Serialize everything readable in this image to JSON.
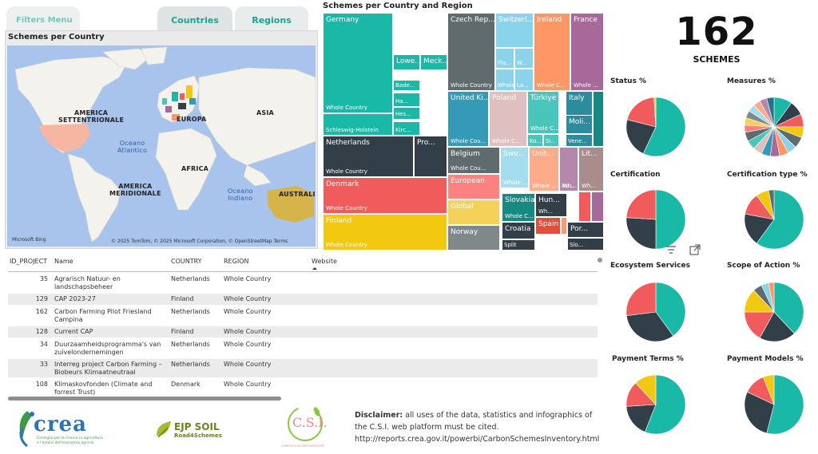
{
  "tabs": {
    "filters": "Filters Menu",
    "countries": "Countries",
    "regions": "Regions"
  },
  "map": {
    "title": "Schemes per Country",
    "labels": {
      "north_america": [
        "AMERICA",
        "SETTENTRIONALE"
      ],
      "south_america": [
        "AMERICA",
        "MERIDIONALE"
      ],
      "europe": "EUROPA",
      "asia": "ASIA",
      "africa": "AFRICA",
      "australia": "AUSTRALIA",
      "atlantic": [
        "Oceano",
        "Atlantico"
      ],
      "indian": [
        "Oceano",
        "Indiano"
      ]
    },
    "bing": "Microsoft Bing",
    "credits": "© 2025 TomTom, © 2025 Microsoft Corporation, © OpenStreetMap  Terms"
  },
  "treemap": {
    "title": "Schemes per Country and Region",
    "tiles": [
      {
        "name": "Germany",
        "sub": "Whole Country",
        "color": "#1ab8a6"
      },
      {
        "name": "Lowe...",
        "sub": "",
        "color": "#1ab8a6"
      },
      {
        "name": "Meck...",
        "sub": "",
        "color": "#1ab8a6"
      },
      {
        "name": "Bade...",
        "sub": "",
        "color": "#1ab8a6"
      },
      {
        "name": "Ha...",
        "sub": "",
        "color": "#1ab8a6"
      },
      {
        "name": "Hes...",
        "sub": "",
        "color": "#1ab8a6"
      },
      {
        "name": "Kirc...",
        "sub": "",
        "color": "#1ab8a6"
      },
      {
        "name": "",
        "sub": "Schleswig-Holstein",
        "color": "#1ab8a6"
      },
      {
        "name": "Netherlands",
        "sub": "Whole Country",
        "color": "#333f48"
      },
      {
        "name": "Pro...",
        "sub": "",
        "color": "#333f48"
      },
      {
        "name": "Denmark",
        "sub": "Whole Country",
        "color": "#f25b5b"
      },
      {
        "name": "Finland",
        "sub": "Whole Country",
        "color": "#f2c811"
      },
      {
        "name": "Czech Rep...",
        "sub": "Whole Country",
        "color": "#5f6b6d"
      },
      {
        "name": "Switzerl...",
        "sub": "",
        "color": "#8ad4eb"
      },
      {
        "name": "Fla...",
        "sub": "",
        "color": "#8ad4eb"
      },
      {
        "name": "W...",
        "sub": "",
        "color": "#8ad4eb"
      },
      {
        "name": "Whole C...",
        "sub": "",
        "color": "#8ad4eb"
      },
      {
        "name": "La...",
        "sub": "",
        "color": "#8ad4eb"
      },
      {
        "name": "Ireland",
        "sub": "Whole C...",
        "color": "#fe9666"
      },
      {
        "name": "France",
        "sub": "Whole ...",
        "color": "#a66999"
      },
      {
        "name": "United Ki...",
        "sub": "Whole Cou...",
        "color": "#3599b8"
      },
      {
        "name": "Poland",
        "sub": "Whole C...",
        "color": "#dfbfbf"
      },
      {
        "name": "Türkiye",
        "sub": "Whole C...",
        "color": "#4ac5bb"
      },
      {
        "name": "Ko...",
        "sub": "",
        "color": "#4ac5bb"
      },
      {
        "name": "Si...",
        "sub": "",
        "color": "#4ac5bb"
      },
      {
        "name": "Italy",
        "sub": "",
        "color": "#2b8c9e"
      },
      {
        "name": "Moli...",
        "sub": "",
        "color": "#2b8c9e"
      },
      {
        "name": "Vene...",
        "sub": "",
        "color": "#2b8c9e"
      },
      {
        "name": "Belgium",
        "sub": "Whole Cou...",
        "color": "#5f6b6d"
      },
      {
        "name": "European",
        "sub": "",
        "color": "#fb8281"
      },
      {
        "name": "Global",
        "sub": "",
        "color": "#f4d25a"
      },
      {
        "name": "Norway",
        "sub": "",
        "color": "#7f898a"
      },
      {
        "name": "Swe...",
        "sub": "Whole ...",
        "color": "#a4ddee"
      },
      {
        "name": "Unit...",
        "sub": "Whole ...",
        "color": "#fdab89"
      },
      {
        "name": "Au...",
        "sub": "Wh...",
        "color": "#b687ac"
      },
      {
        "name": "Lit...",
        "sub": "Wh...",
        "color": "#a98c8c"
      },
      {
        "name": "Slovakia",
        "sub": "Whole C...",
        "color": "#168980"
      },
      {
        "name": "Hun...",
        "sub": "Wh...",
        "color": "#333f48"
      },
      {
        "name": "Spain",
        "sub": "",
        "color": "#e44c3c"
      },
      {
        "name": "Croatia",
        "sub": "",
        "color": "#333f48"
      },
      {
        "name": "Split",
        "sub": "",
        "color": "#333f48"
      },
      {
        "name": "Por...",
        "sub": "",
        "color": "#333f48"
      },
      {
        "name": "Slo...",
        "sub": "",
        "color": "#333f48"
      }
    ]
  },
  "kpi": {
    "value": "162",
    "label": "SCHEMES"
  },
  "pies": [
    {
      "title": "Status %",
      "slices": [
        {
          "value": 57,
          "color": "#1ab8a6"
        },
        {
          "value": 22,
          "color": "#333f48"
        },
        {
          "value": 20,
          "color": "#f25b5b"
        },
        {
          "value": 1,
          "color": "#f2c811"
        }
      ]
    },
    {
      "title": "Measures %",
      "slices": [
        {
          "value": 10,
          "color": "#1ab8a6"
        },
        {
          "value": 8,
          "color": "#333f48"
        },
        {
          "value": 7,
          "color": "#f25b5b"
        },
        {
          "value": 6,
          "color": "#f2c811"
        },
        {
          "value": 6,
          "color": "#5f6b6d"
        },
        {
          "value": 5,
          "color": "#8ad4eb"
        },
        {
          "value": 5,
          "color": "#fe9666"
        },
        {
          "value": 5,
          "color": "#a66999"
        },
        {
          "value": 5,
          "color": "#3599b8"
        },
        {
          "value": 5,
          "color": "#dfbfbf"
        },
        {
          "value": 5,
          "color": "#4ac5bb"
        },
        {
          "value": 5,
          "color": "#5f6b6d"
        },
        {
          "value": 4,
          "color": "#fb8281"
        },
        {
          "value": 4,
          "color": "#f4d25a"
        },
        {
          "value": 4,
          "color": "#7f898a"
        },
        {
          "value": 4,
          "color": "#a4ddee"
        },
        {
          "value": 4,
          "color": "#fdab89"
        },
        {
          "value": 4,
          "color": "#b687ac"
        },
        {
          "value": 4,
          "color": "#28738a"
        }
      ]
    },
    {
      "title": "Certification",
      "slices": [
        {
          "value": 50,
          "color": "#1ab8a6"
        },
        {
          "value": 26,
          "color": "#333f48"
        },
        {
          "value": 24,
          "color": "#f25b5b"
        }
      ]
    },
    {
      "title": "Certification type %",
      "slices": [
        {
          "value": 60,
          "color": "#1ab8a6"
        },
        {
          "value": 18,
          "color": "#333f48"
        },
        {
          "value": 12,
          "color": "#f25b5b"
        },
        {
          "value": 7,
          "color": "#f2c811"
        },
        {
          "value": 3,
          "color": "#5f6b6d"
        }
      ]
    },
    {
      "title": "Ecosystem Services",
      "slices": [
        {
          "value": 40,
          "color": "#1ab8a6"
        },
        {
          "value": 33,
          "color": "#333f48"
        },
        {
          "value": 27,
          "color": "#f25b5b"
        }
      ]
    },
    {
      "title": "Scope of Action %",
      "slices": [
        {
          "value": 38,
          "color": "#1ab8a6"
        },
        {
          "value": 20,
          "color": "#333f48"
        },
        {
          "value": 17,
          "color": "#f25b5b"
        },
        {
          "value": 13,
          "color": "#f2c811"
        },
        {
          "value": 5,
          "color": "#5f6b6d"
        },
        {
          "value": 4,
          "color": "#8ad4eb"
        },
        {
          "value": 3,
          "color": "#fe9666"
        }
      ]
    },
    {
      "title": "Payment Terms %",
      "slices": [
        {
          "value": 56,
          "color": "#1ab8a6"
        },
        {
          "value": 18,
          "color": "#333f48"
        },
        {
          "value": 14,
          "color": "#f25b5b"
        },
        {
          "value": 12,
          "color": "#f2c811"
        }
      ]
    },
    {
      "title": "Payment Models %",
      "slices": [
        {
          "value": 54,
          "color": "#1ab8a6"
        },
        {
          "value": 28,
          "color": "#333f48"
        },
        {
          "value": 12,
          "color": "#f25b5b"
        },
        {
          "value": 6,
          "color": "#f2c811"
        }
      ]
    }
  ],
  "table": {
    "headers": {
      "id": "ID_PROJECT",
      "name": "Name",
      "country": "COUNTRY",
      "region": "REGION",
      "website": "Website"
    },
    "rows": [
      {
        "id": "35",
        "name": [
          "Agrarisch Natuur- en",
          "landschapsbeheer"
        ],
        "country": "Netherlands",
        "region": "Whole Country"
      },
      {
        "id": "129",
        "name": [
          "CAP 2023-27"
        ],
        "country": "Finland",
        "region": "Whole Country"
      },
      {
        "id": "162",
        "name": [
          "Carbon Farming Pilot Friesland",
          "Campina"
        ],
        "country": "Netherlands",
        "region": "Whole Country"
      },
      {
        "id": "128",
        "name": [
          "Current CAP"
        ],
        "country": "Finland",
        "region": "Whole Country"
      },
      {
        "id": "34",
        "name": [
          "Duurzaamheidsprogramma's van",
          "zuivelondernemingen"
        ],
        "country": "Netherlands",
        "region": "Whole Country"
      },
      {
        "id": "33",
        "name": [
          "Interreg project Carbon Farming –",
          "Biobeurs Klimaatneutraal"
        ],
        "country": "Netherlands",
        "region": "Whole Country"
      },
      {
        "id": "108",
        "name": [
          "Klimaskovfonden (Climate and",
          "forrest Trust)"
        ],
        "country": "Denmark",
        "region": "Whole Country"
      }
    ]
  },
  "logos": {
    "crea": "crea",
    "crea_sub": [
      "Consiglio per la ricerca in agricoltura",
      "e l'analisi dell'economia agraria"
    ],
    "ejp": "EJP SOIL",
    "ejp_sub": "Road4Schemes",
    "csi": "C.S.I.",
    "csi_sub": "CARBON SCHEMES INVENTORY"
  },
  "disclaimer": {
    "label": "Disclaimer:",
    "text": " all uses of the data, statistics and  infographics of the C.S.I. web platform must be cited.",
    "url": "http://reports.crea.gov.it/powerbi/CarbonSchemesInventory.html"
  }
}
